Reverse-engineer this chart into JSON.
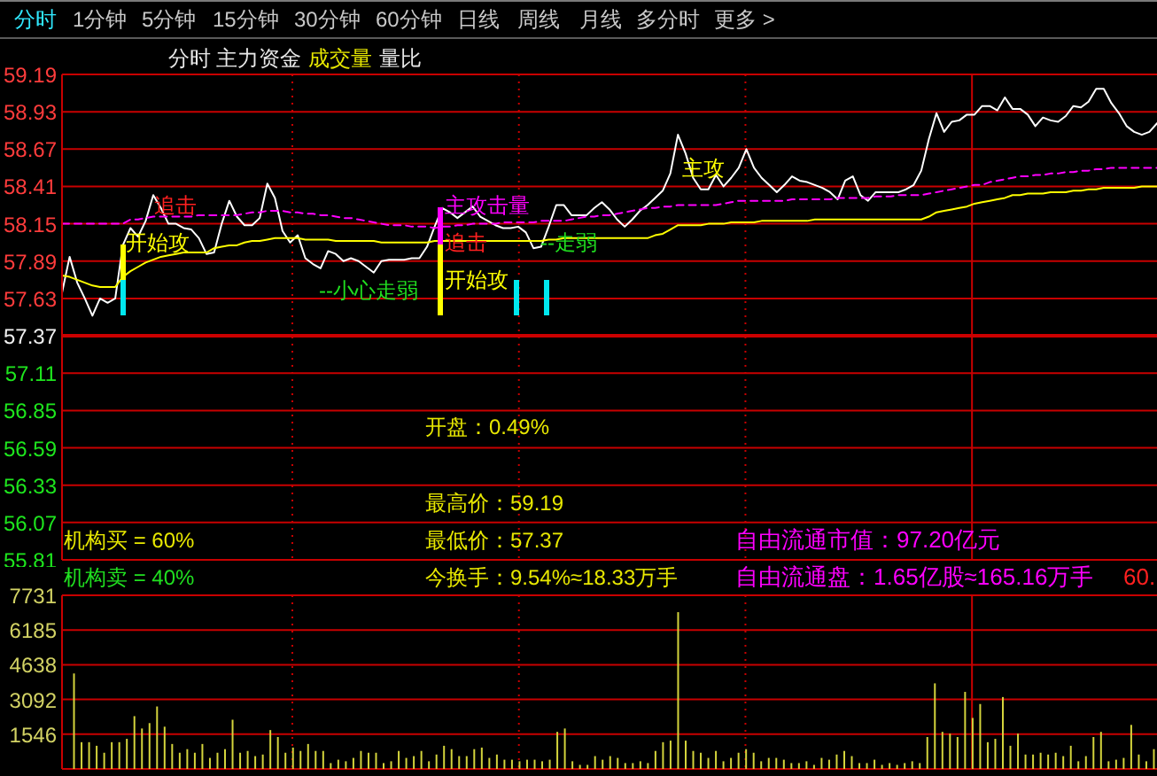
{
  "chart_data": [
    {
      "type": "line",
      "categories": [
        null,
        null,
        null,
        null,
        null,
        null,
        null,
        null,
        null,
        null,
        null,
        null,
        null,
        null,
        null,
        null,
        null,
        null,
        null,
        null,
        null,
        null,
        null,
        null,
        null,
        null,
        null,
        null,
        null,
        null,
        null,
        null,
        null,
        null,
        null,
        null,
        null,
        null,
        null,
        null,
        null,
        null,
        null,
        null,
        null,
        null,
        null,
        null,
        null,
        null,
        null,
        null,
        null,
        null,
        null,
        null,
        null,
        null,
        null,
        null,
        null,
        null,
        null,
        null,
        null,
        null,
        null,
        null,
        null,
        null,
        null,
        null,
        null,
        null,
        null,
        null,
        null,
        null,
        null,
        null,
        null,
        null,
        null,
        null,
        null,
        null,
        null,
        null,
        null,
        null,
        null,
        null,
        null,
        null,
        null,
        null,
        null,
        null,
        null,
        null,
        null,
        null,
        null,
        null,
        null,
        null,
        null,
        null,
        null,
        null,
        null,
        null,
        null,
        null,
        null,
        null,
        null,
        null,
        null,
        null,
        null,
        null,
        null,
        null,
        null,
        null,
        null,
        null,
        null,
        null,
        null,
        null,
        null,
        null,
        null,
        null,
        null,
        null,
        null,
        null,
        null,
        null,
        null,
        null,
        null
      ],
      "series": [
        {
          "color": "#ffffff",
          "values": [
            57.67,
            57.92,
            57.74,
            57.63,
            57.51,
            57.63,
            57.6,
            57.63,
            58.0,
            58.12,
            58.06,
            58.17,
            58.35,
            58.26,
            58.15,
            58.15,
            58.12,
            58.11,
            58.05,
            57.94,
            57.95,
            58.15,
            58.31,
            58.2,
            58.14,
            58.14,
            58.19,
            58.43,
            58.33,
            58.1,
            58.02,
            58.07,
            57.91,
            57.87,
            57.84,
            57.96,
            57.94,
            57.89,
            57.91,
            57.89,
            57.85,
            57.81,
            57.89,
            57.9,
            57.9,
            57.9,
            57.91,
            57.91,
            57.99,
            58.13,
            58.26,
            58.23,
            58.19,
            58.23,
            58.27,
            58.2,
            58.17,
            58.14,
            58.12,
            58.12,
            58.13,
            58.09,
            57.98,
            57.99,
            58.13,
            58.28,
            58.28,
            58.21,
            58.21,
            58.21,
            58.26,
            58.3,
            58.25,
            58.18,
            58.13,
            58.18,
            58.24,
            58.28,
            58.33,
            58.38,
            58.5,
            58.77,
            58.64,
            58.47,
            58.39,
            58.39,
            58.49,
            58.41,
            58.47,
            58.54,
            58.67,
            58.54,
            58.47,
            58.42,
            58.37,
            58.42,
            58.48,
            58.45,
            58.44,
            58.42,
            58.4,
            58.37,
            58.32,
            58.45,
            58.48,
            58.35,
            58.31,
            58.37,
            58.37,
            58.37,
            58.37,
            58.39,
            58.42,
            58.52,
            58.74,
            58.92,
            58.79,
            58.86,
            58.87,
            58.91,
            58.91,
            58.97,
            58.97,
            58.94,
            59.03,
            58.95,
            58.95,
            58.91,
            58.83,
            58.89,
            58.87,
            58.86,
            58.9,
            58.97,
            58.96,
            59.0,
            59.09,
            59.09,
            58.99,
            58.92,
            58.83,
            58.79,
            58.77,
            58.79,
            58.85
          ]
        },
        {
          "color": "#ffff00",
          "values": [
            57.79,
            57.78,
            57.76,
            57.74,
            57.72,
            57.71,
            57.71,
            57.71,
            57.78,
            57.82,
            57.85,
            57.88,
            57.9,
            57.92,
            57.93,
            57.94,
            57.95,
            57.95,
            57.95,
            57.95,
            57.98,
            57.99,
            58.0,
            58.0,
            58.02,
            58.03,
            58.03,
            58.04,
            58.05,
            58.05,
            58.05,
            58.05,
            58.04,
            58.04,
            58.04,
            58.04,
            58.03,
            58.03,
            58.03,
            58.03,
            58.03,
            58.03,
            58.02,
            58.02,
            58.02,
            58.02,
            58.02,
            58.02,
            58.02,
            58.03,
            58.03,
            58.03,
            58.03,
            58.03,
            58.03,
            58.03,
            58.03,
            58.03,
            58.03,
            58.03,
            58.03,
            58.03,
            58.03,
            58.03,
            58.04,
            58.04,
            58.05,
            58.05,
            58.05,
            58.05,
            58.05,
            58.05,
            58.05,
            58.05,
            58.05,
            58.05,
            58.05,
            58.05,
            58.07,
            58.08,
            58.11,
            58.14,
            58.14,
            58.14,
            58.14,
            58.15,
            58.15,
            58.15,
            58.16,
            58.16,
            58.16,
            58.16,
            58.17,
            58.17,
            58.17,
            58.17,
            58.17,
            58.17,
            58.17,
            58.18,
            58.18,
            58.18,
            58.18,
            58.18,
            58.18,
            58.18,
            58.18,
            58.18,
            58.18,
            58.18,
            58.18,
            58.18,
            58.18,
            58.18,
            58.2,
            58.23,
            58.24,
            58.25,
            58.26,
            58.27,
            58.29,
            58.3,
            58.31,
            58.32,
            58.33,
            58.35,
            58.35,
            58.36,
            58.36,
            58.36,
            58.37,
            58.37,
            58.37,
            58.38,
            58.38,
            58.39,
            58.39,
            58.4,
            58.4,
            58.4,
            58.4,
            58.4,
            58.41,
            58.41,
            58.41
          ]
        },
        {
          "color": "#ff00ff",
          "line_style": "dashed",
          "values": [
            58.15,
            58.15,
            58.15,
            58.15,
            58.15,
            58.15,
            58.15,
            58.15,
            58.15,
            58.18,
            58.18,
            58.19,
            58.2,
            58.2,
            58.2,
            58.2,
            58.2,
            58.2,
            58.21,
            58.21,
            58.21,
            58.21,
            58.21,
            58.21,
            58.22,
            58.23,
            58.23,
            58.24,
            58.24,
            58.24,
            58.23,
            58.23,
            58.22,
            58.22,
            58.21,
            58.21,
            58.2,
            58.19,
            58.19,
            58.18,
            58.17,
            58.16,
            58.15,
            58.14,
            58.14,
            58.14,
            58.13,
            58.13,
            58.13,
            58.12,
            58.13,
            58.13,
            58.14,
            58.14,
            58.15,
            58.15,
            58.15,
            58.15,
            58.16,
            58.16,
            58.16,
            58.16,
            58.16,
            58.17,
            58.17,
            58.17,
            58.17,
            58.18,
            58.19,
            58.2,
            58.2,
            58.21,
            58.21,
            58.22,
            58.23,
            58.24,
            58.25,
            58.26,
            58.26,
            58.27,
            58.27,
            58.28,
            58.28,
            58.28,
            58.28,
            58.28,
            58.28,
            58.29,
            58.3,
            58.31,
            58.31,
            58.31,
            58.31,
            58.31,
            58.31,
            58.31,
            58.32,
            58.32,
            58.32,
            58.32,
            58.32,
            58.32,
            58.33,
            58.33,
            58.33,
            58.33,
            58.33,
            58.34,
            58.34,
            58.34,
            58.35,
            58.35,
            58.35,
            58.35,
            58.36,
            58.37,
            58.38,
            58.39,
            58.4,
            58.41,
            58.42,
            58.42,
            58.44,
            58.45,
            58.46,
            58.47,
            58.48,
            58.48,
            58.49,
            58.49,
            58.5,
            58.5,
            58.51,
            58.51,
            58.52,
            58.52,
            58.53,
            58.53,
            58.54,
            58.54,
            58.54,
            58.54,
            58.54,
            58.54,
            58.54
          ]
        }
      ],
      "ylim": [
        55.81,
        59.19
      ],
      "yticks": [
        55.81,
        56.07,
        56.33,
        56.59,
        56.85,
        57.11,
        57.37,
        57.63,
        57.89,
        58.15,
        58.41,
        58.67,
        58.93,
        59.19
      ],
      "grid": true,
      "ref_lines": [
        {
          "axis": "y",
          "value": 57.37,
          "color": "#cc0000"
        }
      ],
      "annotations": [
        "分时",
        "1分钟",
        "5分钟",
        "15分钟",
        "30分钟",
        "60分钟",
        "日线",
        "周线",
        "月线",
        "多分时",
        "更多 >",
        "分时",
        "主力资金",
        "成交量",
        "量比",
        "开始攻",
        "追击",
        "--小心走弱",
        "主攻击量",
        "追击",
        "开始攻",
        "--走弱",
        "主攻",
        "开盘：0.49%",
        "最高价：59.19",
        "最低价：57.37",
        "今换手：9.54%≈18.33万手",
        "机构买 = 60%",
        "机构卖 = 40%",
        "自由流通市值：97.20亿元",
        "自由流通盘：1.65亿股≈165.16万手",
        "60."
      ]
    },
    {
      "type": "bar",
      "categories": [
        null,
        null,
        null,
        null,
        null,
        null,
        null,
        null,
        null,
        null,
        null,
        null,
        null,
        null,
        null,
        null,
        null,
        null,
        null,
        null,
        null,
        null,
        null,
        null,
        null,
        null,
        null,
        null,
        null,
        null,
        null,
        null,
        null,
        null,
        null,
        null,
        null,
        null,
        null,
        null,
        null,
        null,
        null,
        null,
        null,
        null,
        null,
        null,
        null,
        null,
        null,
        null,
        null,
        null,
        null,
        null,
        null,
        null,
        null,
        null,
        null,
        null,
        null,
        null,
        null,
        null,
        null,
        null,
        null,
        null,
        null,
        null,
        null,
        null,
        null,
        null,
        null,
        null,
        null,
        null,
        null,
        null,
        null,
        null,
        null,
        null,
        null,
        null,
        null,
        null,
        null,
        null,
        null,
        null,
        null,
        null,
        null,
        null,
        null,
        null,
        null,
        null,
        null,
        null,
        null,
        null,
        null,
        null,
        null,
        null,
        null,
        null,
        null,
        null,
        null,
        null,
        null,
        null,
        null,
        null,
        null,
        null,
        null,
        null,
        null,
        null,
        null,
        null,
        null,
        null,
        null,
        null,
        null,
        null,
        null,
        null,
        null,
        null,
        null,
        null,
        null,
        null,
        null,
        null,
        null
      ],
      "values": [
        null,
        4250,
        1190,
        1190,
        1030,
        720,
        1190,
        1190,
        1340,
        2350,
        1800,
        2040,
        2780,
        1880,
        1110,
        720,
        880,
        720,
        1110,
        490,
        720,
        880,
        2190,
        720,
        800,
        570,
        640,
        1730,
        1420,
        720,
        950,
        800,
        1110,
        800,
        800,
        260,
        410,
        340,
        490,
        800,
        720,
        720,
        260,
        340,
        800,
        490,
        570,
        800,
        340,
        640,
        1030,
        880,
        570,
        570,
        880,
        950,
        490,
        640,
        410,
        410,
        340,
        410,
        410,
        340,
        410,
        1650,
        1800,
        340,
        180,
        180,
        570,
        410,
        570,
        490,
        260,
        260,
        340,
        260,
        800,
        1190,
        1260,
        6980,
        1260,
        800,
        720,
        490,
        800,
        340,
        490,
        720,
        880,
        720,
        340,
        490,
        490,
        410,
        260,
        260,
        340,
        180,
        490,
        410,
        640,
        800,
        570,
        260,
        260,
        410,
        180,
        260,
        180,
        260,
        340,
        260,
        1420,
        3810,
        1650,
        1570,
        1420,
        3430,
        2270,
        2890,
        1190,
        1340,
        3200,
        1030,
        1570,
        640,
        640,
        720,
        640,
        720,
        570,
        1030,
        340,
        570,
        1420,
        1650,
        340,
        410,
        490,
        1960,
        640,
        340,
        880
      ],
      "color": "#d4d43c",
      "ylim": [
        0,
        7731
      ],
      "yticks": [
        1546,
        3092,
        4638,
        6185,
        7731
      ],
      "grid": true
    }
  ]
}
